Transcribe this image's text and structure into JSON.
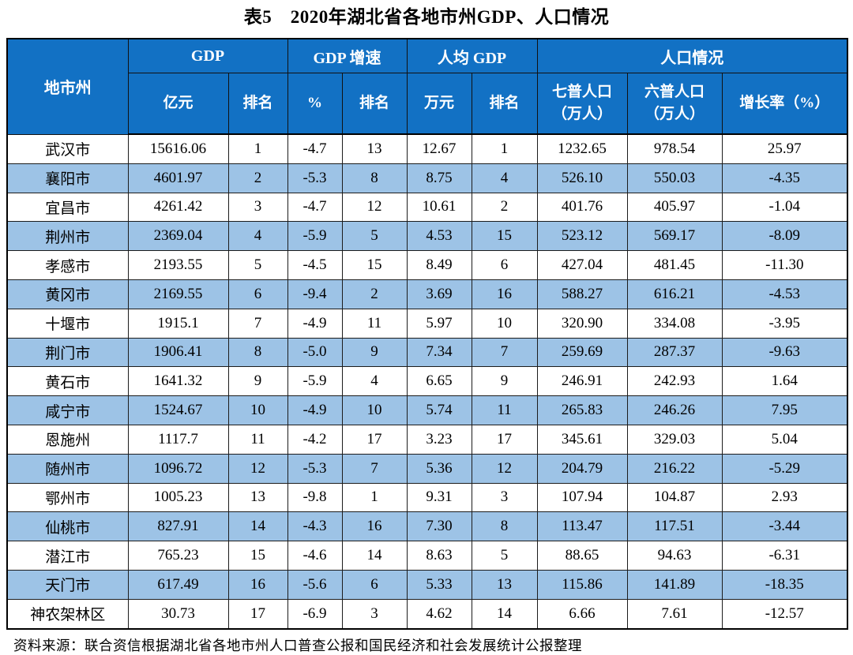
{
  "title": "表5　2020年湖北省各地市州GDP、人口情况",
  "colors": {
    "header_bg": "#1271C4",
    "stripe_bg": "#9DC3E6",
    "row_bg": "#FFFFFF",
    "header_text": "#FFFFFF",
    "body_text": "#000000",
    "border": "#1C1C1C"
  },
  "table": {
    "group_headers": [
      {
        "label": "地市州"
      },
      {
        "label": "GDP"
      },
      {
        "label": "GDP 增速"
      },
      {
        "label": "人均 GDP"
      },
      {
        "label": "人口情况"
      }
    ],
    "sub_headers": [
      "亿元",
      "排名",
      "%",
      "排名",
      "万元",
      "排名",
      "七普人口\n（万人）",
      "六普人口\n（万人）",
      "增长率（%）"
    ],
    "rows": [
      [
        "武汉市",
        "15616.06",
        "1",
        "-4.7",
        "13",
        "12.67",
        "1",
        "1232.65",
        "978.54",
        "25.97"
      ],
      [
        "襄阳市",
        "4601.97",
        "2",
        "-5.3",
        "8",
        "8.75",
        "4",
        "526.10",
        "550.03",
        "-4.35"
      ],
      [
        "宜昌市",
        "4261.42",
        "3",
        "-4.7",
        "12",
        "10.61",
        "2",
        "401.76",
        "405.97",
        "-1.04"
      ],
      [
        "荆州市",
        "2369.04",
        "4",
        "-5.9",
        "5",
        "4.53",
        "15",
        "523.12",
        "569.17",
        "-8.09"
      ],
      [
        "孝感市",
        "2193.55",
        "5",
        "-4.5",
        "15",
        "8.49",
        "6",
        "427.04",
        "481.45",
        "-11.30"
      ],
      [
        "黄冈市",
        "2169.55",
        "6",
        "-9.4",
        "2",
        "3.69",
        "16",
        "588.27",
        "616.21",
        "-4.53"
      ],
      [
        "十堰市",
        "1915.1",
        "7",
        "-4.9",
        "11",
        "5.97",
        "10",
        "320.90",
        "334.08",
        "-3.95"
      ],
      [
        "荆门市",
        "1906.41",
        "8",
        "-5.0",
        "9",
        "7.34",
        "7",
        "259.69",
        "287.37",
        "-9.63"
      ],
      [
        "黄石市",
        "1641.32",
        "9",
        "-5.9",
        "4",
        "6.65",
        "9",
        "246.91",
        "242.93",
        "1.64"
      ],
      [
        "咸宁市",
        "1524.67",
        "10",
        "-4.9",
        "10",
        "5.74",
        "11",
        "265.83",
        "246.26",
        "7.95"
      ],
      [
        "恩施州",
        "1117.7",
        "11",
        "-4.2",
        "17",
        "3.23",
        "17",
        "345.61",
        "329.03",
        "5.04"
      ],
      [
        "随州市",
        "1096.72",
        "12",
        "-5.3",
        "7",
        "5.36",
        "12",
        "204.79",
        "216.22",
        "-5.29"
      ],
      [
        "鄂州市",
        "1005.23",
        "13",
        "-9.8",
        "1",
        "9.31",
        "3",
        "107.94",
        "104.87",
        "2.93"
      ],
      [
        "仙桃市",
        "827.91",
        "14",
        "-4.3",
        "16",
        "7.30",
        "8",
        "113.47",
        "117.51",
        "-3.44"
      ],
      [
        "潜江市",
        "765.23",
        "15",
        "-4.6",
        "14",
        "8.63",
        "5",
        "88.65",
        "94.63",
        "-6.31"
      ],
      [
        "天门市",
        "617.49",
        "16",
        "-5.6",
        "6",
        "5.33",
        "13",
        "115.86",
        "141.89",
        "-18.35"
      ],
      [
        "神农架林区",
        "30.73",
        "17",
        "-6.9",
        "3",
        "4.62",
        "14",
        "6.66",
        "7.61",
        "-12.57"
      ]
    ]
  },
  "footer": "资料来源：联合资信根据湖北省各地市州人口普查公报和国民经济和社会发展统计公报整理"
}
